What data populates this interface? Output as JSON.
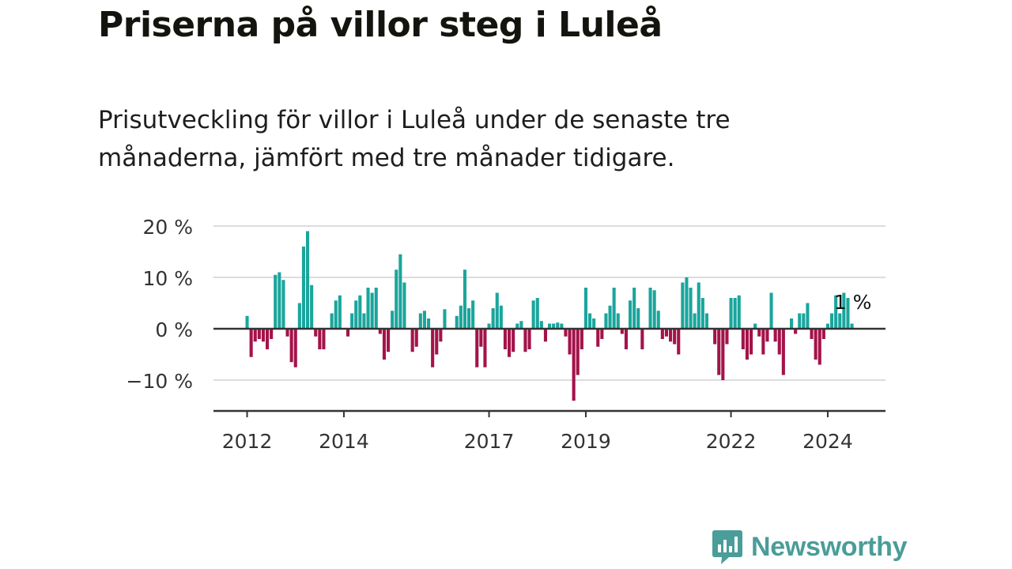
{
  "title": "Priserna på villor steg i Luleå",
  "subtitle": "Prisutveckling för villor i Luleå under de senaste tre månaderna, jämfört med tre månader tidigare.",
  "brand": {
    "name": "Newsworthy",
    "logo_icon": "bar-chart-icon"
  },
  "colors": {
    "positive": "#1aa59c",
    "negative": "#a3134a",
    "grid": "#dcdcdc",
    "zero_line": "#333333",
    "brand": "#4a9d98"
  },
  "chart_data": {
    "type": "bar",
    "title": "Priserna på villor steg i Luleå",
    "xlabel": "",
    "ylabel": "",
    "ylim": [
      -15,
      21
    ],
    "y_ticks": [
      {
        "value": 20,
        "label": "20 %"
      },
      {
        "value": 10,
        "label": "10 %"
      },
      {
        "value": 0,
        "label": "0 %"
      },
      {
        "value": -10,
        "label": "−10 %"
      }
    ],
    "x_ticks": [
      {
        "index": 0,
        "label": "2012"
      },
      {
        "index": 24,
        "label": "2014"
      },
      {
        "index": 60,
        "label": "2017"
      },
      {
        "index": 84,
        "label": "2019"
      },
      {
        "index": 120,
        "label": "2022"
      },
      {
        "index": 144,
        "label": "2024"
      }
    ],
    "annotation": {
      "index": 151,
      "label": "1 %"
    },
    "series": [
      {
        "name": "Prisutveckling",
        "values": [
          2.5,
          -5.5,
          -2.5,
          -2,
          -2.5,
          -4,
          -2,
          10.5,
          11,
          9.5,
          -1.5,
          -6.5,
          -7.5,
          5,
          16,
          19,
          8.5,
          -1.5,
          -4,
          -4,
          0,
          3,
          5.5,
          6.5,
          0,
          -1.5,
          3,
          5.5,
          6.5,
          3,
          8,
          7,
          8,
          -1,
          -6,
          -4.5,
          3.5,
          11.5,
          14.5,
          9,
          0,
          -4.5,
          -3.5,
          3,
          3.5,
          2,
          -7.5,
          -5,
          -2.5,
          3.8,
          0,
          0,
          2.5,
          4.5,
          11.5,
          4,
          5.5,
          -7.5,
          -3.5,
          -7.5,
          1,
          4,
          7,
          4.5,
          -4,
          -5.5,
          -4.5,
          1,
          1.5,
          -4.5,
          -4,
          5.5,
          6,
          1.5,
          -2.5,
          1,
          1,
          1.2,
          1,
          -1.5,
          -5,
          -14,
          -9,
          -4,
          8,
          3,
          2,
          -3.5,
          -2,
          3,
          4.5,
          8,
          3,
          -1,
          -4,
          5.5,
          8,
          4,
          -4,
          0,
          8,
          7.5,
          3.5,
          -2,
          -1.5,
          -2.5,
          -3,
          -5,
          9,
          10,
          8,
          3,
          9,
          6,
          3,
          0,
          -3,
          -9,
          -10,
          -3,
          6,
          6,
          6.5,
          -4,
          -6,
          -5,
          1,
          -1.5,
          -5,
          -2.5,
          7,
          -2.5,
          -5,
          -9,
          0,
          2,
          -1,
          3,
          3,
          5,
          -2,
          -6,
          -7,
          -2,
          1,
          3,
          6.5,
          3,
          7,
          6,
          1
        ]
      }
    ]
  }
}
